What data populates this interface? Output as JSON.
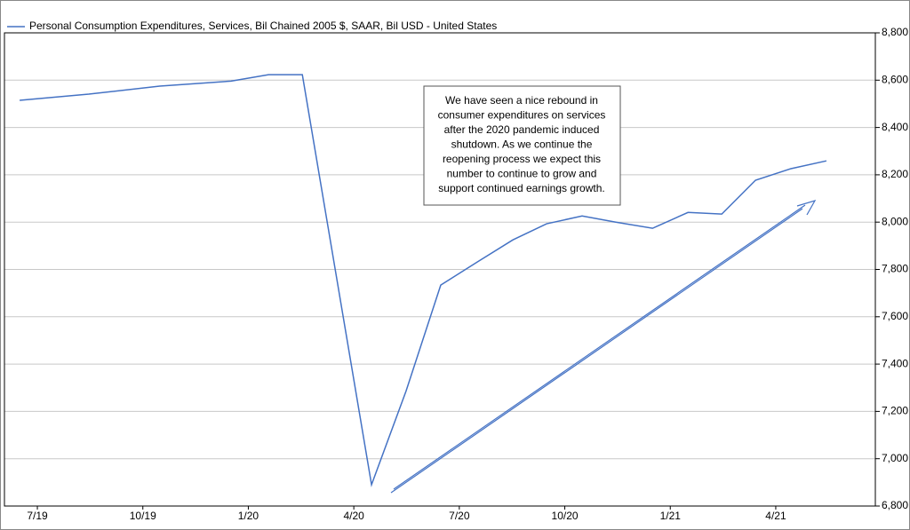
{
  "chart_data": {
    "type": "line",
    "series": [
      {
        "name": "Personal Consumption Expenditures, Services, Bil Chained 2005 $, SAAR, Bil USD - United States",
        "color": "#4472c4",
        "x": [
          2019.458,
          2019.622,
          2019.79,
          2019.959,
          2020.048,
          2020.128,
          2020.292,
          2020.374,
          2020.456,
          2020.543,
          2020.627,
          2020.707,
          2020.791,
          2020.871,
          2020.958,
          2021.042,
          2021.122,
          2021.202,
          2021.286,
          2021.37
        ],
        "values": [
          8515,
          8541,
          8575,
          8596,
          8623,
          8623,
          6890,
          7287,
          7734,
          7832,
          7925,
          7993,
          8026,
          8000,
          7974,
          8041,
          8034,
          8177,
          8226,
          8259
        ]
      }
    ],
    "xlim": [
      2019.422,
      2021.486
    ],
    "xticks": [
      {
        "value": 2019.5,
        "label": "7/19"
      },
      {
        "value": 2019.75,
        "label": "10/19"
      },
      {
        "value": 2020.0,
        "label": "1/20"
      },
      {
        "value": 2020.25,
        "label": "4/20"
      },
      {
        "value": 2020.5,
        "label": "7/20"
      },
      {
        "value": 2020.75,
        "label": "10/20"
      },
      {
        "value": 2021.0,
        "label": "1/21"
      },
      {
        "value": 2021.25,
        "label": "4/21"
      }
    ],
    "ylim": [
      6800,
      8800
    ],
    "yticks": [
      {
        "value": 6800,
        "label": "6,800"
      },
      {
        "value": 7000,
        "label": "7,000"
      },
      {
        "value": 7200,
        "label": "7,200"
      },
      {
        "value": 7400,
        "label": "7,400"
      },
      {
        "value": 7600,
        "label": "7,600"
      },
      {
        "value": 7800,
        "label": "7,800"
      },
      {
        "value": 8000,
        "label": "8,000"
      },
      {
        "value": 8200,
        "label": "8,200"
      },
      {
        "value": 8400,
        "label": "8,400"
      },
      {
        "value": 8600,
        "label": "8,600"
      },
      {
        "value": 8800,
        "label": "8,800"
      }
    ],
    "grid": true,
    "annotation": [
      "We have seen a nice rebound in",
      "consumer expenditures on services",
      "after the 2020 pandemic induced",
      "shutdown. As we continue the",
      "reopening process we expect this",
      "number to continue to grow and",
      "support continued earnings growth."
    ]
  }
}
